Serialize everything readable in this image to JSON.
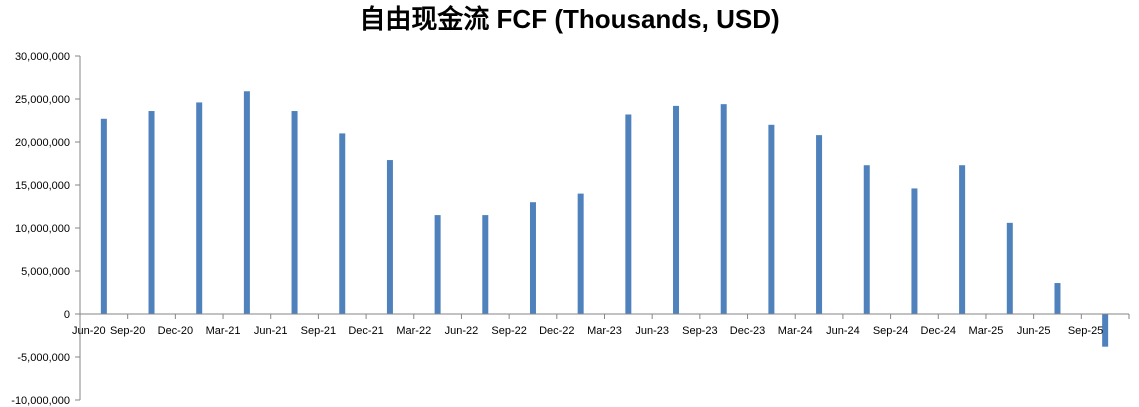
{
  "chart_data": {
    "type": "bar",
    "title": "自由现金流 FCF (Thousands, USD)",
    "xlabel": "",
    "ylabel": "",
    "ylim": [
      -10000000,
      30000000
    ],
    "y_ticks": [
      30000000,
      25000000,
      20000000,
      15000000,
      10000000,
      5000000,
      0,
      -5000000,
      -10000000
    ],
    "y_tick_labels": [
      "30,000,000",
      "25,000,000",
      "20,000,000",
      "15,000,000",
      "10,000,000",
      "5,000,000",
      "0",
      "-5,000,000",
      "-10,000,000"
    ],
    "categories": [
      "Jun-20",
      "Sep-20",
      "Dec-20",
      "Mar-21",
      "Jun-21",
      "Sep-21",
      "Dec-21",
      "Mar-22",
      "Jun-22",
      "Sep-22",
      "Dec-22",
      "Mar-23",
      "Jun-23",
      "Sep-23",
      "Dec-23",
      "Mar-24",
      "Jun-24",
      "Sep-24",
      "Dec-24",
      "Mar-25",
      "Jun-25",
      "Sep-25"
    ],
    "values": [
      22700000,
      23600000,
      24600000,
      25900000,
      23600000,
      21000000,
      17900000,
      11500000,
      11500000,
      13000000,
      14000000,
      23200000,
      24200000,
      24400000,
      22000000,
      20800000,
      17300000,
      14600000,
      17300000,
      10600000,
      3600000,
      -3800000
    ],
    "grid": false,
    "legend": "none",
    "bar_color": "#4F81BD",
    "axis_color": "#868686"
  }
}
